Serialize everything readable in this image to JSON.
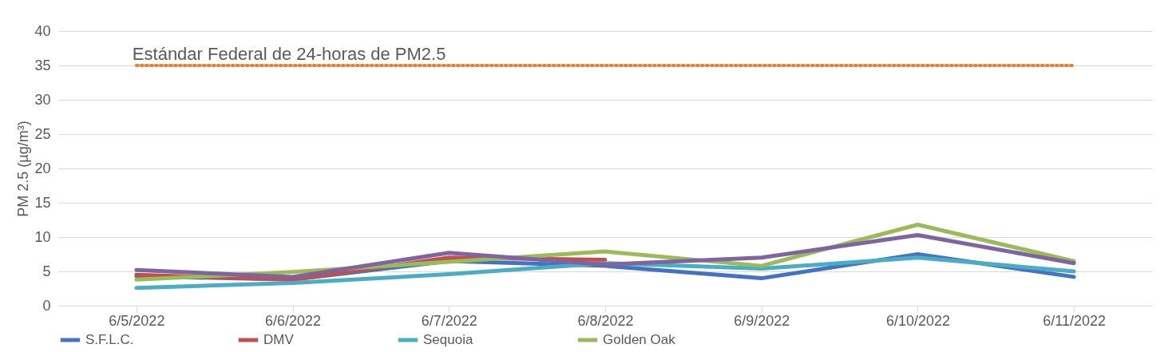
{
  "chart_data": {
    "type": "line",
    "ylabel": "PM 2.5 (µg/m³)",
    "categories": [
      "6/5/2022",
      "6/6/2022",
      "6/7/2022",
      "6/8/2022",
      "6/9/2022",
      "6/10/2022",
      "6/11/2022"
    ],
    "series": [
      {
        "name": "S.F.L.C.",
        "color": "#4472c4",
        "values": [
          4.3,
          3.8,
          6.5,
          5.8,
          4.0,
          7.5,
          4.2
        ]
      },
      {
        "name": "DMV",
        "color": "#c0504d",
        "values": [
          4.5,
          3.8,
          7.0,
          6.7,
          null,
          null,
          null
        ]
      },
      {
        "color": "#8064a2",
        "values": [
          5.2,
          4.2,
          7.7,
          6.0,
          7.0,
          10.3,
          6.2
        ]
      },
      {
        "name": "Sequoia",
        "color": "#4bacc6",
        "values": [
          2.6,
          3.3,
          4.6,
          6.2,
          5.4,
          7.0,
          5.0
        ]
      },
      {
        "name": "Golden Oak",
        "color": "#9bbb59",
        "values": [
          3.8,
          4.9,
          6.4,
          7.9,
          5.8,
          11.8,
          6.5
        ]
      }
    ],
    "ylim": [
      0,
      40
    ],
    "yticks": [
      0,
      5,
      10,
      15,
      20,
      25,
      30,
      35,
      40
    ],
    "grid": "y",
    "legend": "bottom",
    "line_style": "solid",
    "ref_lines": [
      {
        "axis": "y",
        "value": 35,
        "label": "Estándar Federal de 24-horas de PM2.5",
        "color": "#ed7d31",
        "line_style": "dotted"
      }
    ]
  }
}
